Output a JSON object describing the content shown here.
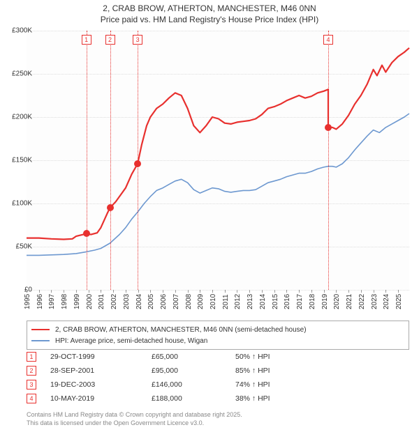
{
  "title": {
    "line1": "2, CRAB BROW, ATHERTON, MANCHESTER, M46 0NN",
    "line2": "Price paid vs. HM Land Registry's House Price Index (HPI)"
  },
  "chart": {
    "type": "line",
    "background_color": "#fdfdfd",
    "grid_color": "#dddddd",
    "x_min": 1995.0,
    "x_max": 2025.9,
    "y_min": 0,
    "y_max": 300000,
    "y_ticks": [
      0,
      50000,
      100000,
      150000,
      200000,
      250000,
      300000
    ],
    "y_tick_labels": [
      "£0",
      "£50K",
      "£100K",
      "£150K",
      "£200K",
      "£250K",
      "£300K"
    ],
    "x_ticks": [
      1995,
      1996,
      1997,
      1998,
      1999,
      2000,
      2001,
      2002,
      2003,
      2004,
      2005,
      2006,
      2007,
      2008,
      2009,
      2010,
      2011,
      2012,
      2013,
      2014,
      2015,
      2016,
      2017,
      2018,
      2019,
      2020,
      2021,
      2022,
      2023,
      2024,
      2025
    ],
    "series": [
      {
        "name": "price_paid",
        "color": "#e8302e",
        "line_width": 2.2,
        "points": [
          [
            1995.0,
            60000
          ],
          [
            1996.0,
            60000
          ],
          [
            1997.0,
            59000
          ],
          [
            1998.0,
            58500
          ],
          [
            1998.7,
            59000
          ],
          [
            1999.0,
            62000
          ],
          [
            1999.83,
            65000
          ],
          [
            2000.2,
            64000
          ],
          [
            2000.7,
            66000
          ],
          [
            2001.0,
            72000
          ],
          [
            2001.5,
            88000
          ],
          [
            2001.74,
            95000
          ],
          [
            2002.2,
            102000
          ],
          [
            2002.7,
            112000
          ],
          [
            2003.0,
            118000
          ],
          [
            2003.5,
            134000
          ],
          [
            2003.97,
            146000
          ],
          [
            2004.3,
            168000
          ],
          [
            2004.7,
            190000
          ],
          [
            2005.0,
            200000
          ],
          [
            2005.5,
            210000
          ],
          [
            2006.0,
            215000
          ],
          [
            2006.5,
            222000
          ],
          [
            2007.0,
            228000
          ],
          [
            2007.5,
            225000
          ],
          [
            2008.0,
            210000
          ],
          [
            2008.5,
            190000
          ],
          [
            2009.0,
            182000
          ],
          [
            2009.5,
            190000
          ],
          [
            2010.0,
            200000
          ],
          [
            2010.5,
            198000
          ],
          [
            2011.0,
            193000
          ],
          [
            2011.5,
            192000
          ],
          [
            2012.0,
            194000
          ],
          [
            2012.5,
            195000
          ],
          [
            2013.0,
            196000
          ],
          [
            2013.5,
            198000
          ],
          [
            2014.0,
            203000
          ],
          [
            2014.5,
            210000
          ],
          [
            2015.0,
            212000
          ],
          [
            2015.5,
            215000
          ],
          [
            2016.0,
            219000
          ],
          [
            2016.5,
            222000
          ],
          [
            2017.0,
            225000
          ],
          [
            2017.5,
            222000
          ],
          [
            2018.0,
            224000
          ],
          [
            2018.5,
            228000
          ],
          [
            2019.0,
            230000
          ],
          [
            2019.36,
            232000
          ],
          [
            2019.36,
            188000
          ],
          [
            2019.7,
            188000
          ],
          [
            2020.0,
            186000
          ],
          [
            2020.5,
            192000
          ],
          [
            2021.0,
            202000
          ],
          [
            2021.5,
            215000
          ],
          [
            2022.0,
            225000
          ],
          [
            2022.5,
            238000
          ],
          [
            2023.0,
            255000
          ],
          [
            2023.3,
            248000
          ],
          [
            2023.7,
            260000
          ],
          [
            2024.0,
            252000
          ],
          [
            2024.5,
            263000
          ],
          [
            2025.0,
            270000
          ],
          [
            2025.5,
            275000
          ],
          [
            2025.9,
            280000
          ]
        ]
      },
      {
        "name": "hpi",
        "color": "#6d98d0",
        "line_width": 1.6,
        "points": [
          [
            1995.0,
            40000
          ],
          [
            1996.0,
            40000
          ],
          [
            1997.0,
            40500
          ],
          [
            1998.0,
            41000
          ],
          [
            1999.0,
            42000
          ],
          [
            1999.83,
            44000
          ],
          [
            2000.5,
            46000
          ],
          [
            2001.0,
            48000
          ],
          [
            2001.74,
            54000
          ],
          [
            2002.5,
            64000
          ],
          [
            2003.0,
            72000
          ],
          [
            2003.5,
            82000
          ],
          [
            2003.97,
            90000
          ],
          [
            2004.5,
            100000
          ],
          [
            2005.0,
            108000
          ],
          [
            2005.5,
            115000
          ],
          [
            2006.0,
            118000
          ],
          [
            2006.5,
            122000
          ],
          [
            2007.0,
            126000
          ],
          [
            2007.5,
            128000
          ],
          [
            2008.0,
            124000
          ],
          [
            2008.5,
            116000
          ],
          [
            2009.0,
            112000
          ],
          [
            2009.5,
            115000
          ],
          [
            2010.0,
            118000
          ],
          [
            2010.5,
            117000
          ],
          [
            2011.0,
            114000
          ],
          [
            2011.5,
            113000
          ],
          [
            2012.0,
            114000
          ],
          [
            2012.5,
            115000
          ],
          [
            2013.0,
            115000
          ],
          [
            2013.5,
            116000
          ],
          [
            2014.0,
            120000
          ],
          [
            2014.5,
            124000
          ],
          [
            2015.0,
            126000
          ],
          [
            2015.5,
            128000
          ],
          [
            2016.0,
            131000
          ],
          [
            2016.5,
            133000
          ],
          [
            2017.0,
            135000
          ],
          [
            2017.5,
            135000
          ],
          [
            2018.0,
            137000
          ],
          [
            2018.5,
            140000
          ],
          [
            2019.0,
            142000
          ],
          [
            2019.36,
            143000
          ],
          [
            2019.7,
            143000
          ],
          [
            2020.0,
            142000
          ],
          [
            2020.5,
            146000
          ],
          [
            2021.0,
            153000
          ],
          [
            2021.5,
            162000
          ],
          [
            2022.0,
            170000
          ],
          [
            2022.5,
            178000
          ],
          [
            2023.0,
            185000
          ],
          [
            2023.5,
            182000
          ],
          [
            2024.0,
            188000
          ],
          [
            2024.5,
            192000
          ],
          [
            2025.0,
            196000
          ],
          [
            2025.5,
            200000
          ],
          [
            2025.9,
            204000
          ]
        ]
      }
    ],
    "sale_markers": [
      {
        "num": "1",
        "x": 1999.83,
        "y": 65000,
        "color": "#e8302e"
      },
      {
        "num": "2",
        "x": 2001.74,
        "y": 95000,
        "color": "#e8302e"
      },
      {
        "num": "3",
        "x": 2003.97,
        "y": 146000,
        "color": "#e8302e"
      },
      {
        "num": "4",
        "x": 2019.36,
        "y": 188000,
        "color": "#e8302e"
      }
    ]
  },
  "legend": {
    "items": [
      {
        "label": "2, CRAB BROW, ATHERTON, MANCHESTER, M46 0NN (semi-detached house)",
        "color": "#e8302e",
        "weight": 2.2
      },
      {
        "label": "HPI: Average price, semi-detached house, Wigan",
        "color": "#6d98d0",
        "weight": 1.6
      }
    ]
  },
  "sales": [
    {
      "num": "1",
      "date": "29-OCT-1999",
      "price": "£65,000",
      "hpi": "50% ↑ HPI"
    },
    {
      "num": "2",
      "date": "28-SEP-2001",
      "price": "£95,000",
      "hpi": "85% ↑ HPI"
    },
    {
      "num": "3",
      "date": "19-DEC-2003",
      "price": "£146,000",
      "hpi": "74% ↑ HPI"
    },
    {
      "num": "4",
      "date": "10-MAY-2019",
      "price": "£188,000",
      "hpi": "38% ↑ HPI"
    }
  ],
  "attribution": {
    "line1": "Contains HM Land Registry data © Crown copyright and database right 2025.",
    "line2": "This data is licensed under the Open Government Licence v3.0."
  }
}
